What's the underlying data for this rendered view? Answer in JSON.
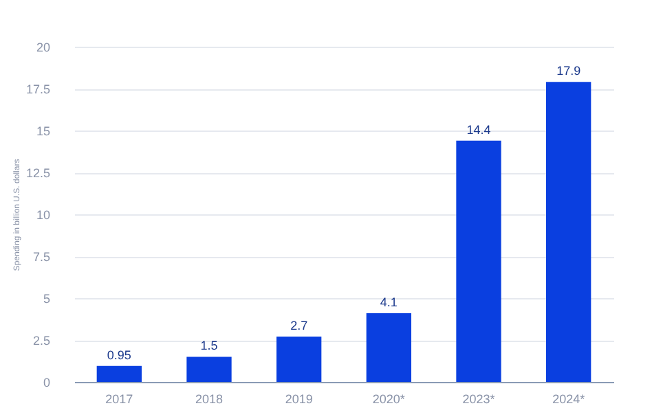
{
  "chart_data": {
    "type": "bar",
    "ylabel": "Spending in billion U.S. dollars",
    "categories": [
      "2017",
      "2018",
      "2019",
      "2020*",
      "2023*",
      "2024*"
    ],
    "values": [
      0.95,
      1.5,
      2.7,
      4.1,
      14.4,
      17.9
    ],
    "color": "#0a3fe0",
    "ylim": [
      0,
      20
    ],
    "yticks": [
      0,
      2.5,
      5,
      7.5,
      10,
      12.5,
      15,
      17.5,
      20
    ],
    "grid": "y",
    "data_labels": true
  }
}
